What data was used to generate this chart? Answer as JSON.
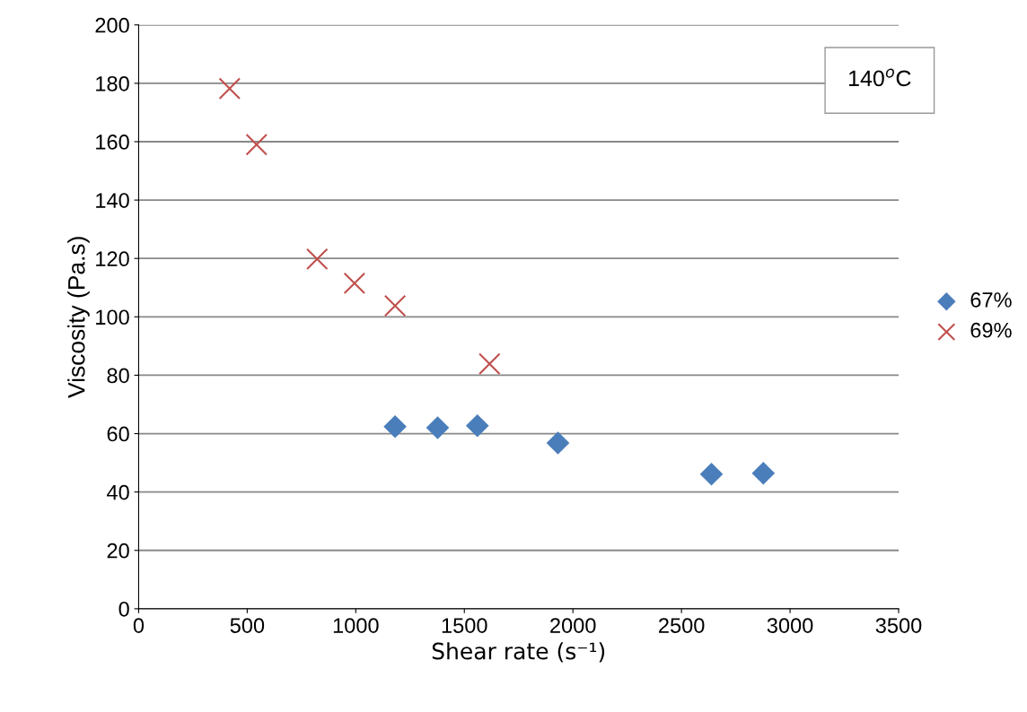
{
  "chart_data": {
    "type": "scatter",
    "xlabel": "Shear rate (s⁻¹)",
    "ylabel": "Viscosity (Pa.s)",
    "xlim": [
      0,
      3500
    ],
    "xticks": [
      0,
      500,
      1000,
      1500,
      2000,
      2500,
      3000,
      3500
    ],
    "ylim": [
      0,
      200
    ],
    "yticks": [
      0,
      20,
      40,
      60,
      80,
      100,
      120,
      140,
      160,
      180,
      200
    ],
    "grid": "y",
    "legend": "right",
    "annotations": [
      "140$^{o}$C"
    ],
    "series": [
      {
        "name": "67%",
        "color": "#4a7ebb",
        "marker": "diamond",
        "x": [
          1181,
          1377,
          1560,
          1931,
          2638,
          2877
        ],
        "values": [
          62.4,
          62,
          62.7,
          56.8,
          46.1,
          46.4
        ]
      },
      {
        "name": "69%",
        "color": "#c0504d",
        "marker": "cross",
        "x": [
          419,
          543,
          822,
          994,
          1181,
          1616
        ],
        "values": [
          178.2,
          159,
          119.8,
          111.5,
          103.8,
          83.9
        ]
      }
    ]
  }
}
